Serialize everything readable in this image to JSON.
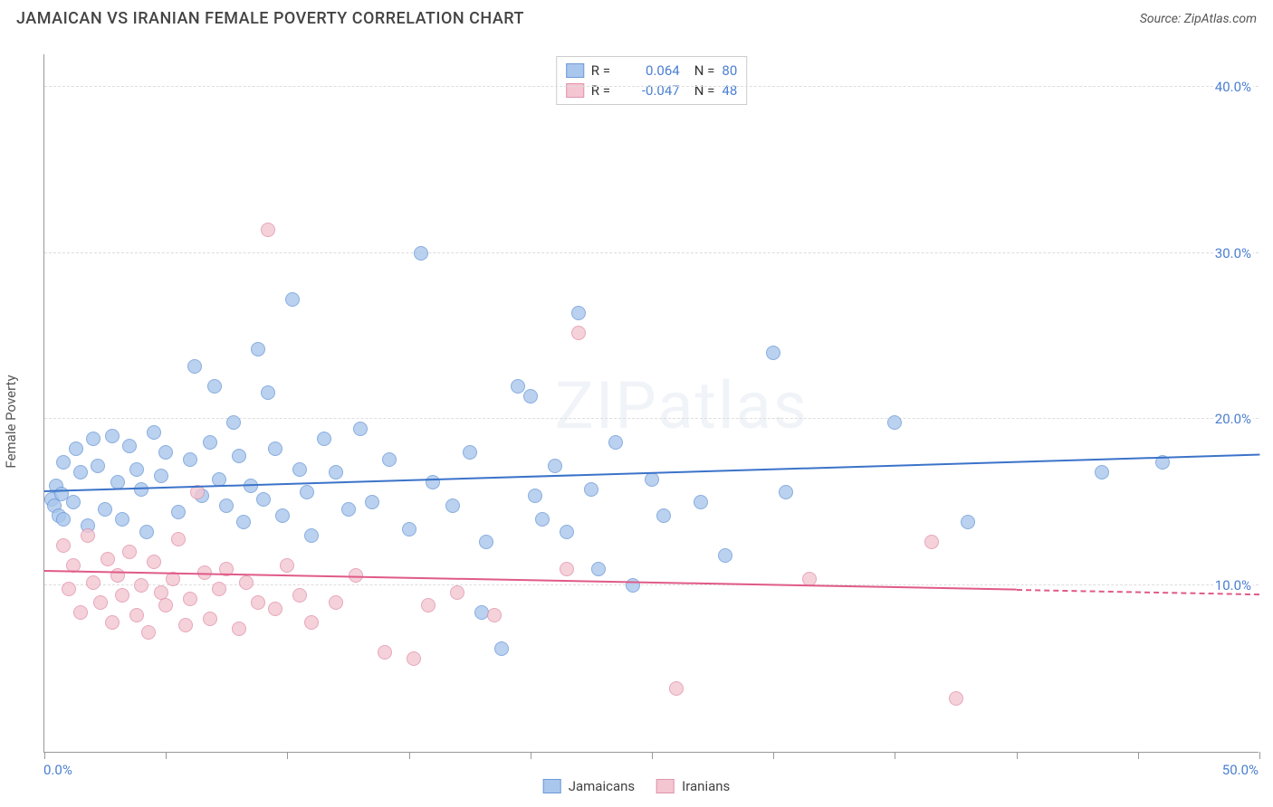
{
  "title": "JAMAICAN VS IRANIAN FEMALE POVERTY CORRELATION CHART",
  "source_prefix": "Source: ",
  "source_name": "ZipAtlas.com",
  "ylabel": "Female Poverty",
  "watermark": "ZIPatlas",
  "chart": {
    "type": "scatter",
    "background_color": "#ffffff",
    "grid_color": "#dddddd",
    "grid_dash": "4,4",
    "axis_color": "#999999",
    "label_color": "#4b7fd1",
    "label_fontsize": 15,
    "xlim": [
      0,
      50
    ],
    "ylim": [
      0,
      42
    ],
    "xticks": [
      0,
      5,
      10,
      15,
      20,
      25,
      30,
      35,
      40,
      45,
      50
    ],
    "yticks": [
      10,
      20,
      30,
      40
    ],
    "ytick_labels": [
      "10.0%",
      "20.0%",
      "30.0%",
      "40.0%"
    ],
    "x_min_label": "0.0%",
    "x_max_label": "50.0%",
    "marker_radius": 8,
    "marker_stroke_width": 1.2,
    "marker_fill_opacity": 0.35,
    "series": [
      {
        "name": "Jamaicans",
        "color_fill": "#a9c6ec",
        "color_stroke": "#6d9ad8",
        "trend_color": "#3b73c9",
        "trend_width": 2.2,
        "trend_y_at_xmin": 15.6,
        "trend_y_at_xmax": 17.8,
        "trend_dashed_from_x": null,
        "r": "0.064",
        "n": "80",
        "points": [
          [
            0.3,
            15.2
          ],
          [
            0.4,
            14.8
          ],
          [
            0.5,
            16.0
          ],
          [
            0.6,
            14.2
          ],
          [
            0.7,
            15.5
          ],
          [
            0.8,
            17.4
          ],
          [
            0.8,
            14.0
          ],
          [
            1.2,
            15.0
          ],
          [
            1.3,
            18.2
          ],
          [
            1.5,
            16.8
          ],
          [
            1.8,
            13.6
          ],
          [
            2.0,
            18.8
          ],
          [
            2.2,
            17.2
          ],
          [
            2.5,
            14.6
          ],
          [
            2.8,
            19.0
          ],
          [
            3.0,
            16.2
          ],
          [
            3.2,
            14.0
          ],
          [
            3.5,
            18.4
          ],
          [
            3.8,
            17.0
          ],
          [
            4.0,
            15.8
          ],
          [
            4.2,
            13.2
          ],
          [
            4.5,
            19.2
          ],
          [
            4.8,
            16.6
          ],
          [
            5.0,
            18.0
          ],
          [
            5.5,
            14.4
          ],
          [
            6.0,
            17.6
          ],
          [
            6.2,
            23.2
          ],
          [
            6.5,
            15.4
          ],
          [
            6.8,
            18.6
          ],
          [
            7.0,
            22.0
          ],
          [
            7.2,
            16.4
          ],
          [
            7.5,
            14.8
          ],
          [
            7.8,
            19.8
          ],
          [
            8.0,
            17.8
          ],
          [
            8.2,
            13.8
          ],
          [
            8.5,
            16.0
          ],
          [
            8.8,
            24.2
          ],
          [
            9.0,
            15.2
          ],
          [
            9.2,
            21.6
          ],
          [
            9.5,
            18.2
          ],
          [
            9.8,
            14.2
          ],
          [
            10.2,
            27.2
          ],
          [
            10.5,
            17.0
          ],
          [
            10.8,
            15.6
          ],
          [
            11.0,
            13.0
          ],
          [
            11.5,
            18.8
          ],
          [
            12.0,
            16.8
          ],
          [
            12.5,
            14.6
          ],
          [
            13.0,
            19.4
          ],
          [
            13.5,
            15.0
          ],
          [
            14.2,
            17.6
          ],
          [
            15.0,
            13.4
          ],
          [
            15.5,
            30.0
          ],
          [
            16.0,
            16.2
          ],
          [
            16.8,
            14.8
          ],
          [
            17.5,
            18.0
          ],
          [
            18.0,
            8.4
          ],
          [
            18.2,
            12.6
          ],
          [
            18.8,
            6.2
          ],
          [
            19.5,
            22.0
          ],
          [
            20.0,
            21.4
          ],
          [
            20.2,
            15.4
          ],
          [
            20.5,
            14.0
          ],
          [
            21.0,
            17.2
          ],
          [
            21.5,
            13.2
          ],
          [
            22.0,
            26.4
          ],
          [
            22.5,
            15.8
          ],
          [
            22.8,
            11.0
          ],
          [
            23.5,
            18.6
          ],
          [
            24.2,
            10.0
          ],
          [
            25.0,
            16.4
          ],
          [
            25.5,
            14.2
          ],
          [
            27.0,
            15.0
          ],
          [
            28.0,
            11.8
          ],
          [
            30.0,
            24.0
          ],
          [
            30.5,
            15.6
          ],
          [
            35.0,
            19.8
          ],
          [
            38.0,
            13.8
          ],
          [
            43.5,
            16.8
          ],
          [
            46.0,
            17.4
          ]
        ]
      },
      {
        "name": "Iranians",
        "color_fill": "#f3c6d2",
        "color_stroke": "#e193ab",
        "trend_color": "#e05a88",
        "trend_width": 2.2,
        "trend_y_at_xmin": 10.8,
        "trend_y_at_xmax": 9.4,
        "trend_dashed_from_x": 40,
        "r": "-0.047",
        "n": "48",
        "points": [
          [
            0.8,
            12.4
          ],
          [
            1.0,
            9.8
          ],
          [
            1.2,
            11.2
          ],
          [
            1.5,
            8.4
          ],
          [
            1.8,
            13.0
          ],
          [
            2.0,
            10.2
          ],
          [
            2.3,
            9.0
          ],
          [
            2.6,
            11.6
          ],
          [
            2.8,
            7.8
          ],
          [
            3.0,
            10.6
          ],
          [
            3.2,
            9.4
          ],
          [
            3.5,
            12.0
          ],
          [
            3.8,
            8.2
          ],
          [
            4.0,
            10.0
          ],
          [
            4.3,
            7.2
          ],
          [
            4.5,
            11.4
          ],
          [
            4.8,
            9.6
          ],
          [
            5.0,
            8.8
          ],
          [
            5.3,
            10.4
          ],
          [
            5.5,
            12.8
          ],
          [
            5.8,
            7.6
          ],
          [
            6.0,
            9.2
          ],
          [
            6.3,
            15.6
          ],
          [
            6.6,
            10.8
          ],
          [
            6.8,
            8.0
          ],
          [
            7.2,
            9.8
          ],
          [
            7.5,
            11.0
          ],
          [
            8.0,
            7.4
          ],
          [
            8.3,
            10.2
          ],
          [
            8.8,
            9.0
          ],
          [
            9.2,
            31.4
          ],
          [
            9.5,
            8.6
          ],
          [
            10.0,
            11.2
          ],
          [
            10.5,
            9.4
          ],
          [
            11.0,
            7.8
          ],
          [
            12.0,
            9.0
          ],
          [
            12.8,
            10.6
          ],
          [
            14.0,
            6.0
          ],
          [
            15.2,
            5.6
          ],
          [
            15.8,
            8.8
          ],
          [
            17.0,
            9.6
          ],
          [
            18.5,
            8.2
          ],
          [
            21.5,
            11.0
          ],
          [
            22.0,
            25.2
          ],
          [
            26.0,
            3.8
          ],
          [
            31.5,
            10.4
          ],
          [
            36.5,
            12.6
          ],
          [
            37.5,
            3.2
          ]
        ]
      }
    ]
  },
  "bottom_legend": [
    {
      "label": "Jamaicans",
      "fill": "#a9c6ec",
      "stroke": "#6d9ad8"
    },
    {
      "label": "Iranians",
      "fill": "#f3c6d2",
      "stroke": "#e193ab"
    }
  ]
}
